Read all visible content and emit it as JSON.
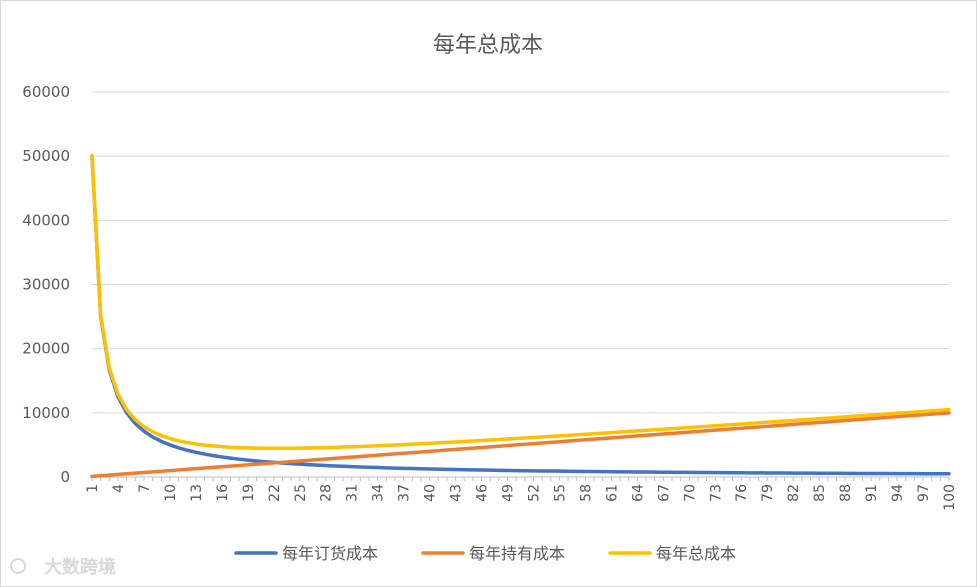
{
  "chart_data": {
    "type": "line",
    "title": "每年总成本",
    "xlabel": "",
    "ylabel": "",
    "x": [
      1,
      2,
      3,
      4,
      5,
      6,
      7,
      8,
      9,
      10,
      11,
      12,
      13,
      14,
      15,
      16,
      17,
      18,
      19,
      20,
      21,
      22,
      23,
      24,
      25,
      26,
      27,
      28,
      29,
      30,
      31,
      32,
      33,
      34,
      35,
      36,
      37,
      38,
      39,
      40,
      41,
      42,
      43,
      44,
      45,
      46,
      47,
      48,
      49,
      50,
      51,
      52,
      53,
      54,
      55,
      56,
      57,
      58,
      59,
      60,
      61,
      62,
      63,
      64,
      65,
      66,
      67,
      68,
      69,
      70,
      71,
      72,
      73,
      74,
      75,
      76,
      77,
      78,
      79,
      80,
      81,
      82,
      83,
      84,
      85,
      86,
      87,
      88,
      89,
      90,
      91,
      92,
      93,
      94,
      95,
      96,
      97,
      98,
      99,
      100
    ],
    "x_tick_labels": [
      1,
      4,
      7,
      10,
      13,
      16,
      19,
      22,
      25,
      28,
      31,
      34,
      37,
      40,
      43,
      46,
      49,
      52,
      55,
      58,
      61,
      64,
      67,
      70,
      73,
      76,
      79,
      82,
      85,
      88,
      91,
      94,
      97,
      100
    ],
    "ylim": [
      0,
      60000
    ],
    "y_ticks": [
      0,
      10000,
      20000,
      30000,
      40000,
      50000,
      60000
    ],
    "grid": true,
    "legend_position": "bottom",
    "series": [
      {
        "name": "每年订货成本",
        "color": "#4472C4",
        "formula": "50000/x"
      },
      {
        "name": "每年持有成本",
        "color": "#ED7D31",
        "formula": "100*x"
      },
      {
        "name": "每年总成本",
        "color": "#FFC000",
        "formula": "50000/x + 100*x"
      }
    ]
  },
  "watermark": {
    "text": "大数跨境"
  }
}
